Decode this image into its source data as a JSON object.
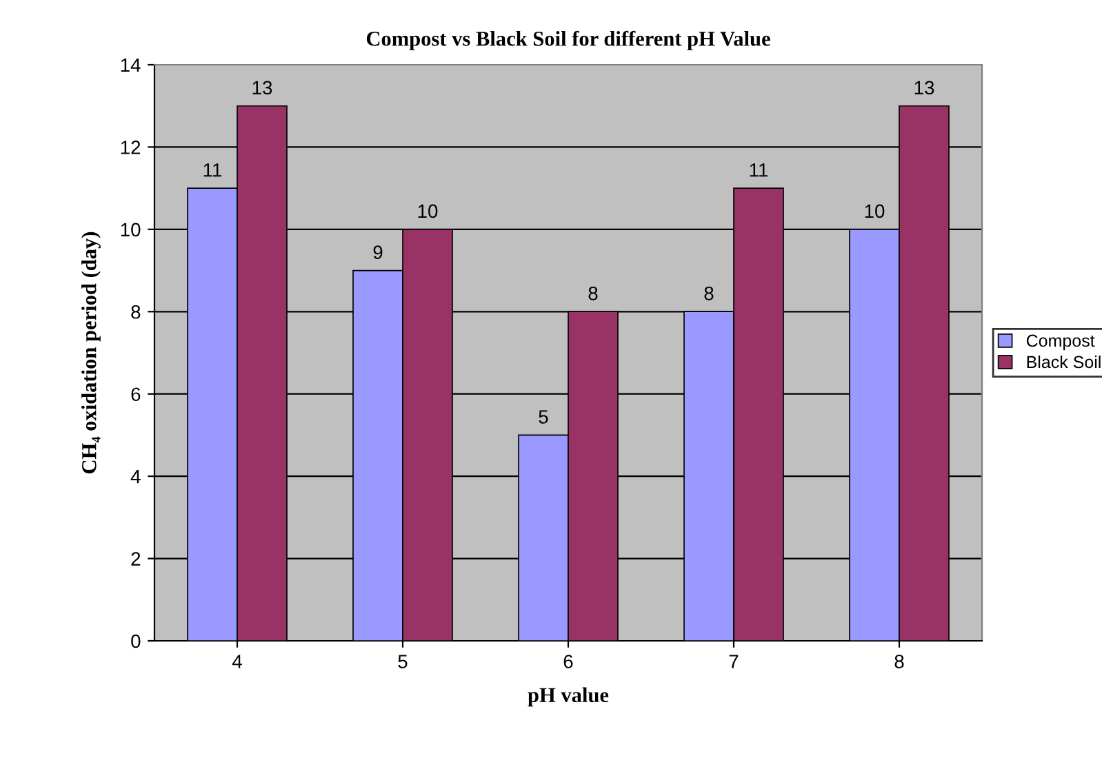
{
  "chart_data": {
    "type": "bar",
    "title": "Compost vs Black Soil for different pH Value",
    "xlabel": "pH value",
    "ylabel": "CH₄ oxidation period (day)",
    "categories": [
      "4",
      "5",
      "6",
      "7",
      "8"
    ],
    "series": [
      {
        "name": "Compost",
        "color": "#9999ff",
        "values": [
          11,
          9,
          5,
          8,
          10
        ]
      },
      {
        "name": "Black Soil",
        "color": "#993366",
        "values": [
          13,
          10,
          8,
          11,
          13
        ]
      }
    ],
    "ylim": [
      0,
      14
    ],
    "yticks": [
      0,
      2,
      4,
      6,
      8,
      10,
      12,
      14
    ],
    "grid": "y",
    "legend": "right",
    "data_labels": true
  }
}
